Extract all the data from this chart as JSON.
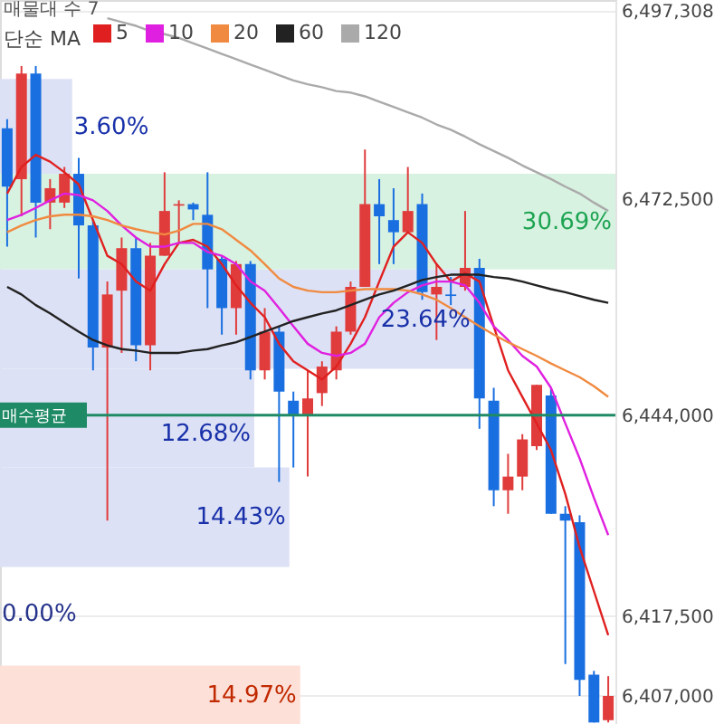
{
  "chart_data": {
    "type": "candlestick",
    "annotations": [
      "매물대 수 7",
      "0.00%"
    ],
    "legend_title": "단순 MA",
    "categories": [
      null,
      null,
      null,
      null,
      null,
      null,
      null,
      null,
      null,
      null,
      null,
      null,
      null,
      null,
      null,
      null,
      null,
      null,
      null,
      null,
      null,
      null,
      null,
      null,
      null,
      null,
      null,
      null,
      null,
      null,
      null,
      null,
      null,
      null,
      null,
      null,
      null,
      null,
      null,
      null,
      null,
      null,
      null
    ],
    "ohlc": [
      [
        6481800,
        6483000,
        6466200,
        6474100
      ],
      [
        6475100,
        6490000,
        6470200,
        6489000
      ],
      [
        6489000,
        6490000,
        6467400,
        6472000
      ],
      [
        6472000,
        6475100,
        6468500,
        6473900
      ],
      [
        6472000,
        6476700,
        6471300,
        6475800
      ],
      [
        6475800,
        6477900,
        6462000,
        6469000
      ],
      [
        6469000,
        6469700,
        6449900,
        6452900
      ],
      [
        6452900,
        6461600,
        6430100,
        6459900
      ],
      [
        6460400,
        6467400,
        6452200,
        6466000
      ],
      [
        6466000,
        6467400,
        6451100,
        6453200
      ],
      [
        6453200,
        6466700,
        6449900,
        6465000
      ],
      [
        6465000,
        6476000,
        6465000,
        6470900
      ],
      [
        6471600,
        6472300,
        6466700,
        6471800
      ],
      [
        6471800,
        6472000,
        6469700,
        6471100
      ],
      [
        6470400,
        6476000,
        6458100,
        6463200
      ],
      [
        6464600,
        6465000,
        6454600,
        6458100
      ],
      [
        6458100,
        6464300,
        6454600,
        6463900
      ],
      [
        6463900,
        6464300,
        6448700,
        6449900
      ],
      [
        6449900,
        6458100,
        6448700,
        6455000
      ],
      [
        6455000,
        6455700,
        6435200,
        6447100
      ],
      [
        6445900,
        6447100,
        6437100,
        6444100
      ],
      [
        6444100,
        6449900,
        6435900,
        6446200
      ],
      [
        6446900,
        6451100,
        6445200,
        6450400
      ],
      [
        6449900,
        6455700,
        6448700,
        6455000
      ],
      [
        6455000,
        6461600,
        6454600,
        6460900
      ],
      [
        6460900,
        6479000,
        6460900,
        6471800
      ],
      [
        6471800,
        6475100,
        6463900,
        6470200
      ],
      [
        6469700,
        6473900,
        6463900,
        6468100
      ],
      [
        6468100,
        6476700,
        6468100,
        6470900
      ],
      [
        6471800,
        6473200,
        6459200,
        6460200
      ],
      [
        6459900,
        6463900,
        6453900,
        6460900
      ],
      [
        6459900,
        6462200,
        6458500,
        6459700
      ],
      [
        6460900,
        6470900,
        6460400,
        6463400
      ],
      [
        6463400,
        6464600,
        6442200,
        6446200
      ],
      [
        6445900,
        6447600,
        6432000,
        6434100
      ],
      [
        6434100,
        6438900,
        6431000,
        6435900
      ],
      [
        6435900,
        6441500,
        6434100,
        6440800
      ],
      [
        6439900,
        6448000,
        6439400,
        6448000
      ],
      [
        6446600,
        6447600,
        6431000,
        6431000
      ],
      [
        6431000,
        6432000,
        6411200,
        6430100
      ],
      [
        6429900,
        6430800,
        6407000,
        6409100
      ],
      [
        6409800,
        6410300,
        6403500,
        6403500
      ],
      [
        6403800,
        6409600,
        6403500,
        6407000
      ]
    ],
    "colors": [
      "#1a6fe0",
      "#e03c3c",
      "#1a6fe0",
      "#e03c3c",
      "#e03c3c",
      "#1a6fe0",
      "#1a6fe0",
      "#e03c3c",
      "#e03c3c",
      "#1a6fe0",
      "#e03c3c",
      "#e03c3c",
      "#e03c3c",
      "#1a6fe0",
      "#1a6fe0",
      "#1a6fe0",
      "#e03c3c",
      "#1a6fe0",
      "#e03c3c",
      "#1a6fe0",
      "#1a6fe0",
      "#e03c3c",
      "#e03c3c",
      "#e03c3c",
      "#e03c3c",
      "#e03c3c",
      "#1a6fe0",
      "#1a6fe0",
      "#e03c3c",
      "#1a6fe0",
      "#e03c3c",
      "#1a6fe0",
      "#e03c3c",
      "#1a6fe0",
      "#1a6fe0",
      "#e03c3c",
      "#e03c3c",
      "#e03c3c",
      "#1a6fe0",
      "#1a6fe0",
      "#1a6fe0",
      "#1a6fe0",
      "#e03c3c"
    ],
    "series": [
      {
        "name": "5",
        "type": "line",
        "color": "#e02020",
        "values": [
          6473200,
          6476700,
          6478300,
          6477400,
          6476000,
          6474400,
          6469700,
          6465000,
          6463900,
          6461600,
          6460400,
          6463900,
          6466700,
          6467100,
          6466200,
          6463900,
          6461100,
          6458800,
          6456900,
          6453400,
          6451100,
          6449900,
          6448700,
          6450400,
          6453400,
          6456900,
          6461600,
          6466200,
          6468100,
          6466700,
          6463900,
          6461600,
          6462700,
          6461600,
          6455700,
          6449900,
          6446400,
          6442900,
          6439400,
          6433600,
          6426600,
          6420800,
          6415000
        ]
      },
      {
        "name": "10",
        "type": "line",
        "color": "#e020e0",
        "values": [
          6469700,
          6470400,
          6471300,
          6472300,
          6473200,
          6473000,
          6472300,
          6470900,
          6469000,
          6467400,
          6466200,
          6466200,
          6466700,
          6466700,
          6465500,
          6465000,
          6463900,
          6461600,
          6460400,
          6458100,
          6455700,
          6453400,
          6452200,
          6451800,
          6452200,
          6453400,
          6456900,
          6458800,
          6460200,
          6461100,
          6461600,
          6461600,
          6461100,
          6458800,
          6455700,
          6453900,
          6451800,
          6450400,
          6447600,
          6442900,
          6438300,
          6433100,
          6428200
        ]
      },
      {
        "name": "20",
        "type": "line",
        "color": "#f08a40",
        "values": [
          6468100,
          6469000,
          6469700,
          6470200,
          6470400,
          6470400,
          6470200,
          6469700,
          6469000,
          6468500,
          6468100,
          6467800,
          6468300,
          6469200,
          6469200,
          6468500,
          6467100,
          6465700,
          6463900,
          6462000,
          6460900,
          6460400,
          6460200,
          6460200,
          6460400,
          6460600,
          6460600,
          6460600,
          6460400,
          6459900,
          6459200,
          6458100,
          6456900,
          6455700,
          6454600,
          6453600,
          6452700,
          6451800,
          6450800,
          6449900,
          6449000,
          6447800,
          6446400
        ]
      },
      {
        "name": "60",
        "type": "line",
        "color": "#222222",
        "values": [
          6460900,
          6459900,
          6458500,
          6457400,
          6456200,
          6455000,
          6453900,
          6453200,
          6452700,
          6452500,
          6452200,
          6452200,
          6452200,
          6452500,
          6452700,
          6453200,
          6453600,
          6454300,
          6455000,
          6455700,
          6456400,
          6456900,
          6457400,
          6457800,
          6458500,
          6459200,
          6459900,
          6460400,
          6461100,
          6461800,
          6462200,
          6462500,
          6462500,
          6462500,
          6462200,
          6462000,
          6461600,
          6461100,
          6460600,
          6460200,
          6459700,
          6459200,
          6458800
        ]
      },
      {
        "name": "120",
        "type": "line",
        "color": "#aaaaaa",
        "values": [
          null,
          null,
          null,
          null,
          null,
          null,
          null,
          6496300,
          6495800,
          6495300,
          6494600,
          6494200,
          6493700,
          6493000,
          6492300,
          6491600,
          6490900,
          6490200,
          6489500,
          6488800,
          6488100,
          6487600,
          6487200,
          6486700,
          6486500,
          6486000,
          6485300,
          6484600,
          6483900,
          6483200,
          6482300,
          6481600,
          6480700,
          6479700,
          6478800,
          6477900,
          6476900,
          6476000,
          6475100,
          6474100,
          6473200,
          6472000,
          6470900
        ]
      }
    ],
    "ylim": [
      6403300,
      6498700
    ],
    "yticks": [
      {
        "value": 6497308,
        "label": "6,497,308"
      },
      {
        "value": 6472500,
        "label": "6,472,500"
      },
      {
        "value": 6444000,
        "label": "6,444,000"
      },
      {
        "value": 6417500,
        "label": "6,417,500"
      },
      {
        "value": 6407000,
        "label": "6,407,000"
      }
    ],
    "bands": [
      {
        "axis": "y",
        "from": 6475800,
        "to": 6488300,
        "label": "3.60%",
        "color": "#dde1f5"
      },
      {
        "axis": "y",
        "from": 6463200,
        "to": 6475800,
        "label": "30.69%",
        "color": "#d8f2e2"
      },
      {
        "axis": "y",
        "from": 6450100,
        "to": 6463200,
        "label": "23.64%",
        "color": "#dde1f5"
      },
      {
        "axis": "y",
        "from": 6437100,
        "to": 6450100,
        "label": "12.68%",
        "color": "#dde1f5"
      },
      {
        "axis": "y",
        "from": 6424000,
        "to": 6437100,
        "label": "14.43%",
        "color": "#dde1f5"
      },
      {
        "axis": "y",
        "from": 6403300,
        "to": 6411000,
        "label": "14.97%",
        "color": "#fde0d8"
      }
    ],
    "ref_lines": [
      {
        "axis": "y",
        "value": 6444000,
        "label": "매수평균",
        "color": "#1f8a66",
        "line_style": "solid"
      }
    ],
    "grid": "y",
    "legend": "top left",
    "tick_labels": "y"
  }
}
